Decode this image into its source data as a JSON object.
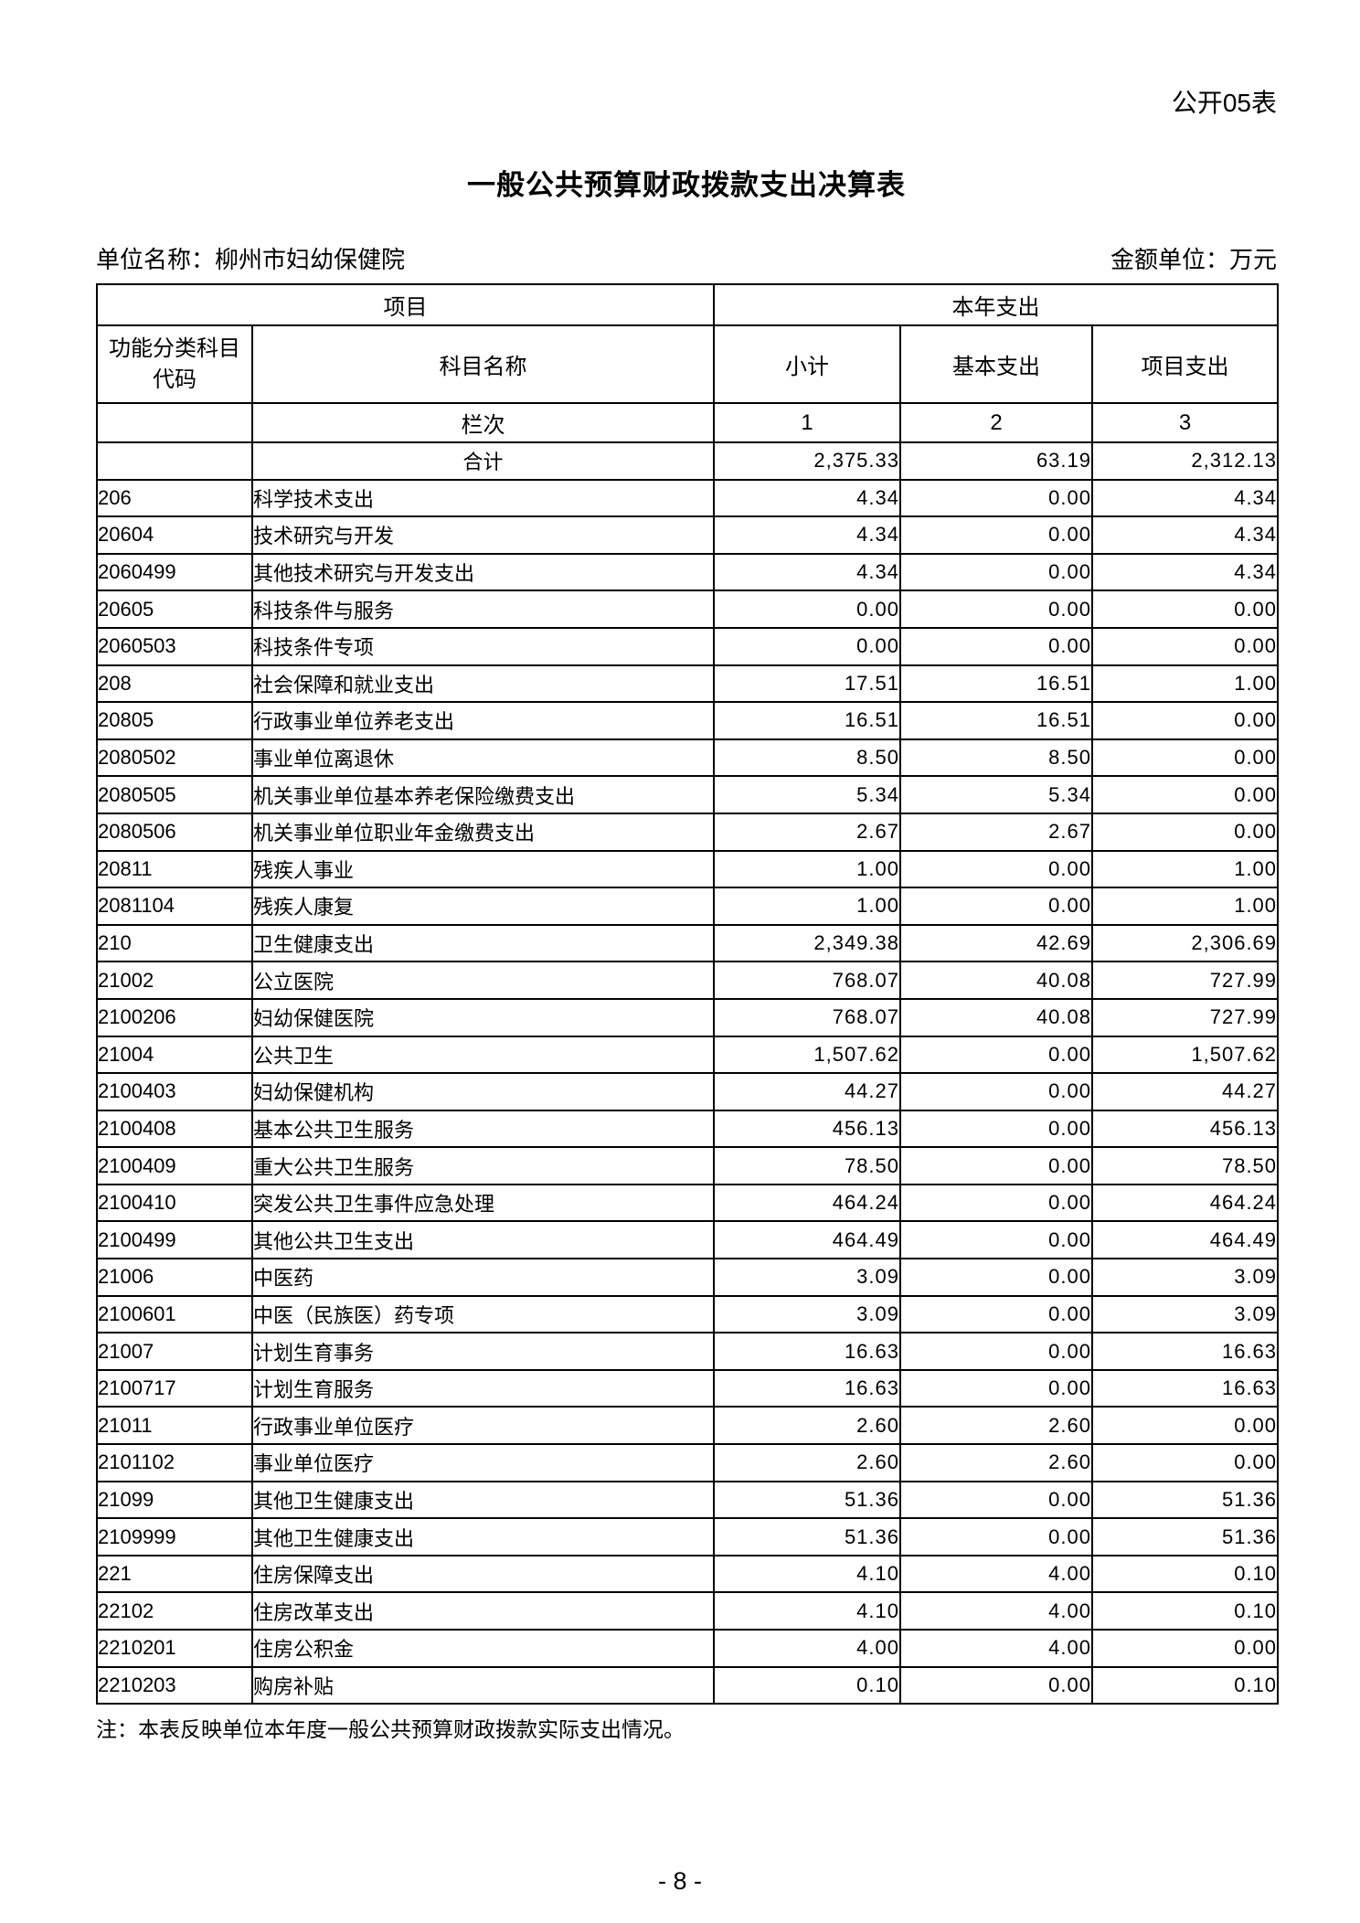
{
  "page": {
    "sheet_label": "公开05表",
    "title": "一般公共预算财政拨款支出决算表",
    "unit_name": "单位名称：柳州市妇幼保健院",
    "amount_unit": "金额单位：万元",
    "note": "注：本表反映单位本年度一般公共预算财政拨款实际支出情况。",
    "page_number": "- 8 -"
  },
  "table": {
    "header": {
      "group_item": "项目",
      "group_current_year": "本年支出",
      "col_code": "功能分类科目\n代码",
      "col_name": "科目名称",
      "col_subtotal": "小计",
      "col_basic": "基本支出",
      "col_project": "项目支出",
      "cols_row_label": "栏次",
      "col_numbers": [
        "1",
        "2",
        "3"
      ]
    },
    "total_row": {
      "name": "合计",
      "subtotal": "2,375.33",
      "basic": "63.19",
      "project": "2,312.13"
    },
    "rows": [
      {
        "code": "206",
        "indent": 0,
        "name": "科学技术支出",
        "subtotal": "4.34",
        "basic": "0.00",
        "project": "4.34"
      },
      {
        "code": "20604",
        "indent": 1,
        "name": "技术研究与开发",
        "subtotal": "4.34",
        "basic": "0.00",
        "project": "4.34"
      },
      {
        "code": "2060499",
        "indent": 2,
        "name": "其他技术研究与开发支出",
        "subtotal": "4.34",
        "basic": "0.00",
        "project": "4.34"
      },
      {
        "code": "20605",
        "indent": 1,
        "name": "科技条件与服务",
        "subtotal": "0.00",
        "basic": "0.00",
        "project": "0.00"
      },
      {
        "code": "2060503",
        "indent": 2,
        "name": "科技条件专项",
        "subtotal": "0.00",
        "basic": "0.00",
        "project": "0.00"
      },
      {
        "code": "208",
        "indent": 0,
        "name": "社会保障和就业支出",
        "subtotal": "17.51",
        "basic": "16.51",
        "project": "1.00"
      },
      {
        "code": "20805",
        "indent": 1,
        "name": "行政事业单位养老支出",
        "subtotal": "16.51",
        "basic": "16.51",
        "project": "0.00"
      },
      {
        "code": "2080502",
        "indent": 2,
        "name": "事业单位离退休",
        "subtotal": "8.50",
        "basic": "8.50",
        "project": "0.00"
      },
      {
        "code": "2080505",
        "indent": 2,
        "name": "机关事业单位基本养老保险缴费支出",
        "subtotal": "5.34",
        "basic": "5.34",
        "project": "0.00"
      },
      {
        "code": "2080506",
        "indent": 2,
        "name": "机关事业单位职业年金缴费支出",
        "subtotal": "2.67",
        "basic": "2.67",
        "project": "0.00"
      },
      {
        "code": "20811",
        "indent": 1,
        "name": "残疾人事业",
        "subtotal": "1.00",
        "basic": "0.00",
        "project": "1.00"
      },
      {
        "code": "2081104",
        "indent": 2,
        "name": "残疾人康复",
        "subtotal": "1.00",
        "basic": "0.00",
        "project": "1.00"
      },
      {
        "code": "210",
        "indent": 0,
        "name": "卫生健康支出",
        "subtotal": "2,349.38",
        "basic": "42.69",
        "project": "2,306.69"
      },
      {
        "code": "21002",
        "indent": 1,
        "name": "公立医院",
        "subtotal": "768.07",
        "basic": "40.08",
        "project": "727.99"
      },
      {
        "code": "2100206",
        "indent": 2,
        "name": "妇幼保健医院",
        "subtotal": "768.07",
        "basic": "40.08",
        "project": "727.99"
      },
      {
        "code": "21004",
        "indent": 1,
        "name": "公共卫生",
        "subtotal": "1,507.62",
        "basic": "0.00",
        "project": "1,507.62"
      },
      {
        "code": "2100403",
        "indent": 2,
        "name": "妇幼保健机构",
        "subtotal": "44.27",
        "basic": "0.00",
        "project": "44.27"
      },
      {
        "code": "2100408",
        "indent": 2,
        "name": "基本公共卫生服务",
        "subtotal": "456.13",
        "basic": "0.00",
        "project": "456.13"
      },
      {
        "code": "2100409",
        "indent": 2,
        "name": "重大公共卫生服务",
        "subtotal": "78.50",
        "basic": "0.00",
        "project": "78.50"
      },
      {
        "code": "2100410",
        "indent": 2,
        "name": "突发公共卫生事件应急处理",
        "subtotal": "464.24",
        "basic": "0.00",
        "project": "464.24"
      },
      {
        "code": "2100499",
        "indent": 2,
        "name": "其他公共卫生支出",
        "subtotal": "464.49",
        "basic": "0.00",
        "project": "464.49"
      },
      {
        "code": "21006",
        "indent": 1,
        "name": "中医药",
        "subtotal": "3.09",
        "basic": "0.00",
        "project": "3.09"
      },
      {
        "code": "2100601",
        "indent": 2,
        "name": "中医（民族医）药专项",
        "subtotal": "3.09",
        "basic": "0.00",
        "project": "3.09"
      },
      {
        "code": "21007",
        "indent": 1,
        "name": "计划生育事务",
        "subtotal": "16.63",
        "basic": "0.00",
        "project": "16.63"
      },
      {
        "code": "2100717",
        "indent": 2,
        "name": "计划生育服务",
        "subtotal": "16.63",
        "basic": "0.00",
        "project": "16.63"
      },
      {
        "code": "21011",
        "indent": 1,
        "name": "行政事业单位医疗",
        "subtotal": "2.60",
        "basic": "2.60",
        "project": "0.00"
      },
      {
        "code": "2101102",
        "indent": 2,
        "name": "事业单位医疗",
        "subtotal": "2.60",
        "basic": "2.60",
        "project": "0.00"
      },
      {
        "code": "21099",
        "indent": 1,
        "name": "其他卫生健康支出",
        "subtotal": "51.36",
        "basic": "0.00",
        "project": "51.36"
      },
      {
        "code": "2109999",
        "indent": 2,
        "name": "其他卫生健康支出",
        "subtotal": "51.36",
        "basic": "0.00",
        "project": "51.36"
      },
      {
        "code": "221",
        "indent": 0,
        "name": "住房保障支出",
        "subtotal": "4.10",
        "basic": "4.00",
        "project": "0.10"
      },
      {
        "code": "22102",
        "indent": 1,
        "name": "住房改革支出",
        "subtotal": "4.10",
        "basic": "4.00",
        "project": "0.10"
      },
      {
        "code": "2210201",
        "indent": 2,
        "name": "住房公积金",
        "subtotal": "4.00",
        "basic": "4.00",
        "project": "0.00"
      },
      {
        "code": "2210203",
        "indent": 2,
        "name": "购房补贴",
        "subtotal": "0.10",
        "basic": "0.00",
        "project": "0.10"
      }
    ]
  }
}
